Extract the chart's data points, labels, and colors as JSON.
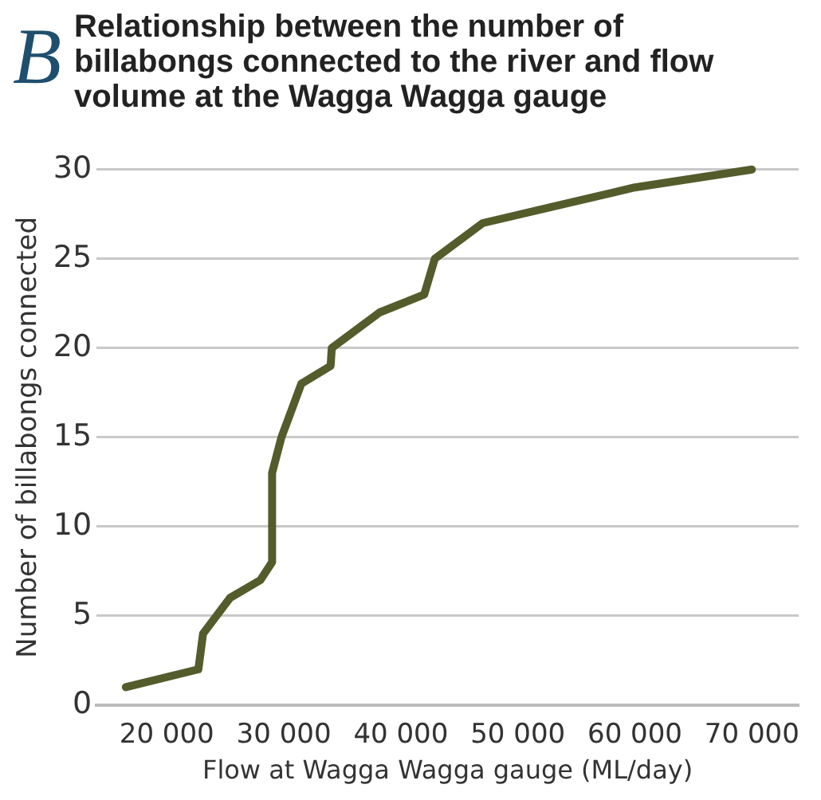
{
  "chart_data": {
    "type": "line",
    "title": "Relationship between the number of billabongs connected to the river and flow volume at the Wagga Wagga gauge",
    "annotations": [
      "B"
    ],
    "xlabel": "Flow at Wagga Wagga gauge (ML/day)",
    "ylabel": "Number of billabongs connected",
    "x": [
      16500,
      22700,
      23100,
      25400,
      28000,
      29000,
      29000,
      29800,
      31500,
      34000,
      34100,
      38200,
      42000,
      42900,
      47000,
      60000,
      70000
    ],
    "series": [
      {
        "color": "#545c2c",
        "values": [
          1,
          2,
          4,
          6,
          7,
          8,
          13,
          15,
          18,
          19,
          20,
          22,
          23,
          25,
          27,
          29,
          30
        ]
      }
    ],
    "xlim": [
      14000,
      74000
    ],
    "ylim": [
      0,
      30
    ],
    "xticks": [
      {
        "value": 20000,
        "label": "20 000"
      },
      {
        "value": 30000,
        "label": "30 000"
      },
      {
        "value": 40000,
        "label": "40 000"
      },
      {
        "value": 50000,
        "label": "50 000"
      },
      {
        "value": 60000,
        "label": "60 000"
      },
      {
        "value": 70000,
        "label": "70 000"
      }
    ],
    "yticks": [
      0,
      5,
      10,
      15,
      20,
      25,
      30
    ],
    "grid": "y",
    "legend": false,
    "marker": "none",
    "line_style": "solid"
  }
}
